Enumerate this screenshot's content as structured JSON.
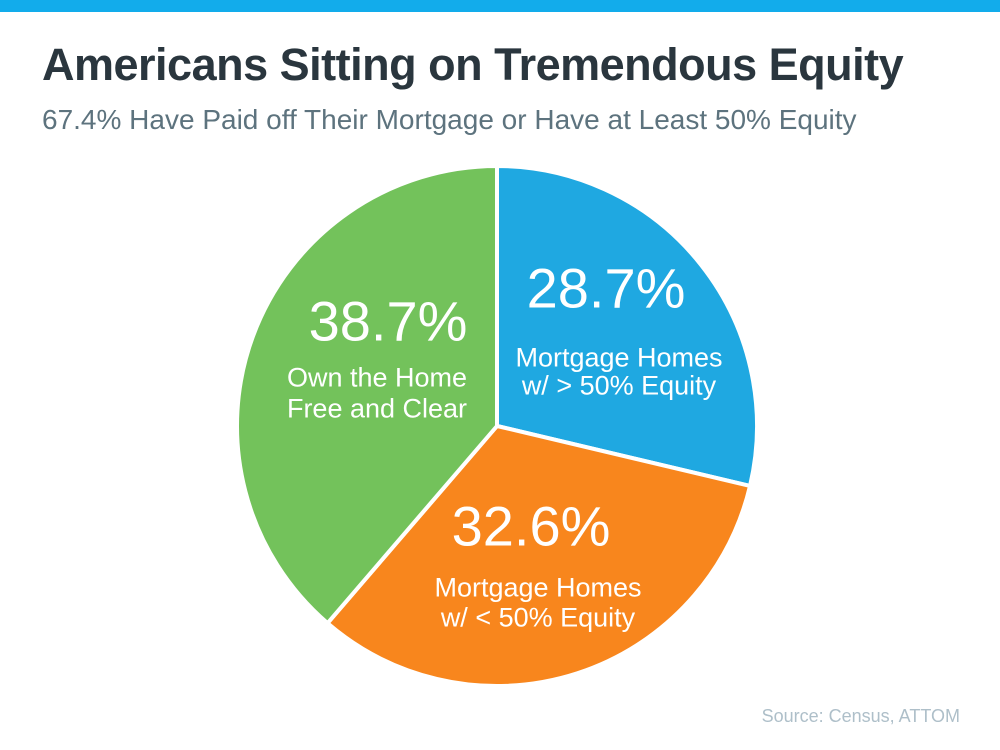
{
  "chart_data": {
    "type": "pie",
    "title": "Americans Sitting on Tremendous Equity",
    "subtitle": "67.4% Have Paid off Their Mortgage or Have at Least 50% Equity",
    "source": "Source: Census, ATTOM",
    "start_angle_deg": 0,
    "direction": "clockwise",
    "legend_position": "none",
    "labels_inside_slices": true,
    "slices": [
      {
        "id": "gt50-equity",
        "label": "Mortgage Homes w/ > 50% Equity",
        "label_lines": [
          "Mortgage Homes",
          "w/ > 50% Equity"
        ],
        "value_pct": 28.7,
        "value_label": "28.7%",
        "color": "#1FA8E1"
      },
      {
        "id": "lt50-equity",
        "label": "Mortgage Homes w/ < 50% Equity",
        "label_lines": [
          "Mortgage Homes",
          "w/ < 50% Equity"
        ],
        "value_pct": 32.6,
        "value_label": "32.6%",
        "color": "#F8861D"
      },
      {
        "id": "free-and-clear",
        "label": "Own the Home Free and Clear",
        "label_lines": [
          "Own the Home",
          "Free and Clear"
        ],
        "value_pct": 38.7,
        "value_label": "38.7%",
        "color": "#73C25B"
      }
    ]
  },
  "colors": {
    "top_bar": "#12ACEB",
    "title_text": "#2A363E",
    "subtitle_text": "#5D737E",
    "source_text": "#AEBFC9",
    "slice_label_text": "#FFFFFF",
    "slice_gap": "#FFFFFF"
  }
}
